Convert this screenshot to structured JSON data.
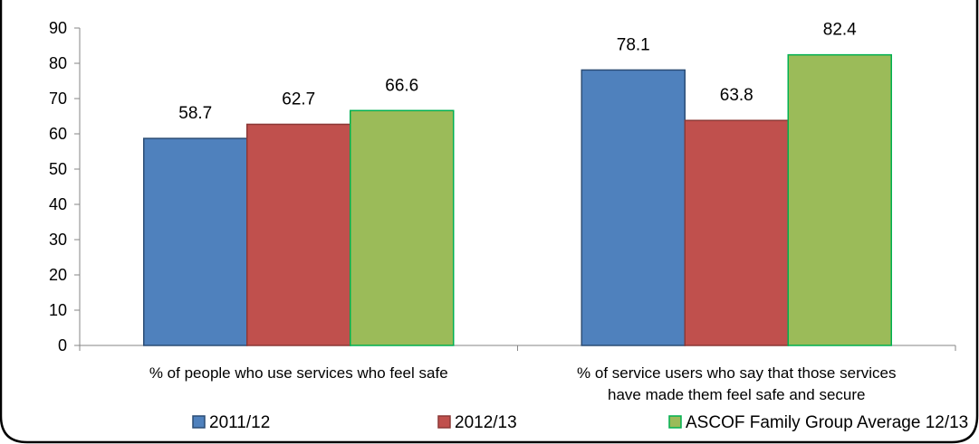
{
  "chart_data": {
    "type": "bar",
    "title": "",
    "xlabel": "",
    "ylabel": "",
    "ylim": [
      0,
      90
    ],
    "yticks": [
      0,
      10,
      20,
      30,
      40,
      50,
      60,
      70,
      80,
      90
    ],
    "categories": [
      [
        "% of people who use services who feel safe"
      ],
      [
        "% of service users who say that those services",
        "have made them feel safe and secure"
      ]
    ],
    "series": [
      {
        "name": "2011/12",
        "values": [
          58.7,
          78.1
        ],
        "color": "#4f81bd",
        "stroke": "#2c4d75"
      },
      {
        "name": "2012/13",
        "values": [
          62.7,
          63.8
        ],
        "color": "#c0504d",
        "stroke": "#8c3836"
      },
      {
        "name": "ASCOF Family Group Average 12/13",
        "values": [
          66.6,
          82.4
        ],
        "color": "#9bbb59",
        "stroke": "#00b050"
      }
    ],
    "data_labels": true,
    "grid": false,
    "legend": "bottom"
  }
}
